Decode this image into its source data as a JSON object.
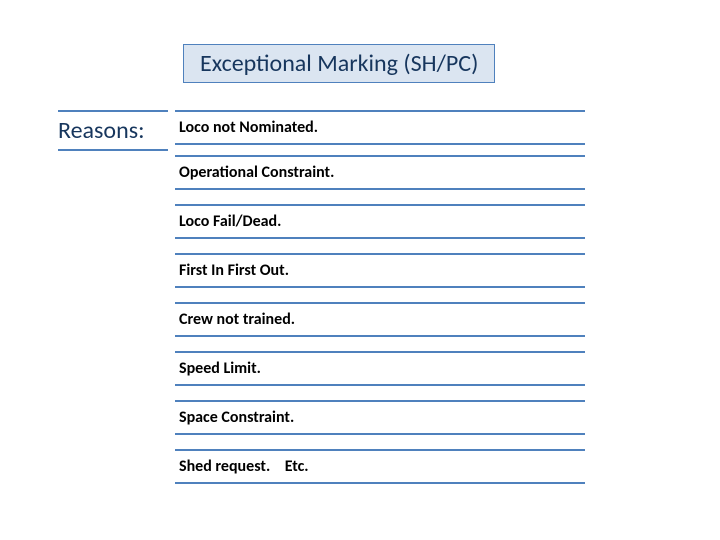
{
  "title": "Exceptional Marking (SH/PC)",
  "label": "Reasons:",
  "items": [
    "Loco not Nominated.",
    "Operational Constraint.",
    "Loco Fail/Dead.",
    "First In First Out.",
    "Crew not trained.",
    "Speed Limit.",
    "Space Constraint.",
    "Shed request.    Etc."
  ],
  "colors": {
    "title_bg": "#dbe5f1",
    "title_border": "#4f81bd",
    "title_text": "#17365d",
    "rule": "#4f81bd",
    "item_text": "#000000",
    "background": "#ffffff"
  },
  "fontsizes": {
    "title": 24,
    "label": 24,
    "item": 16
  }
}
